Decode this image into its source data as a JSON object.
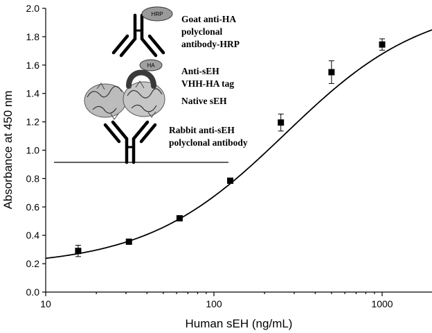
{
  "chart_data": {
    "type": "scatter",
    "title": "",
    "xlabel": "Human sEH (ng/mL)",
    "ylabel": "Absorbance at 450 nm",
    "xscale": "log",
    "xlim": [
      10,
      2000
    ],
    "ylim": [
      0.0,
      2.0
    ],
    "x_ticks": [
      "10",
      "100",
      "1000"
    ],
    "y_ticks": [
      "0.0",
      "0.2",
      "0.4",
      "0.6",
      "0.8",
      "1.0",
      "1.2",
      "1.4",
      "1.6",
      "1.8",
      "2.0"
    ],
    "grid": false,
    "legend": "none",
    "marker": "square",
    "color": "#000000",
    "points": [
      {
        "x": 15.6,
        "y": 0.29,
        "err": 0.04
      },
      {
        "x": 31.25,
        "y": 0.355,
        "err": 0.01
      },
      {
        "x": 62.5,
        "y": 0.52,
        "err": 0.01
      },
      {
        "x": 125,
        "y": 0.785,
        "err": 0.01
      },
      {
        "x": 250,
        "y": 1.195,
        "err": 0.06
      },
      {
        "x": 500,
        "y": 1.55,
        "err": 0.08
      },
      {
        "x": 1000,
        "y": 1.745,
        "err": 0.04
      }
    ],
    "fit": {
      "type": "four-parameter logistic",
      "bottom": 0.18,
      "top": 2.05,
      "ec50": 265,
      "hill": 1.05,
      "x_range": [
        10,
        2000
      ]
    }
  },
  "diagram": {
    "hrp_label": "HRP",
    "ha_label": "HA",
    "goat_label_line1": "Goat anti-HA",
    "goat_label_line2": "polyclonal",
    "goat_label_line3": "antibody-HRP",
    "vhh_label_line1": "Anti-sEH",
    "vhh_label_line2": "VHH-HA tag",
    "native_label": "Native sEH",
    "rabbit_label_line1": "Rabbit anti-sEH",
    "rabbit_label_line2": "polyclonal antibody"
  }
}
